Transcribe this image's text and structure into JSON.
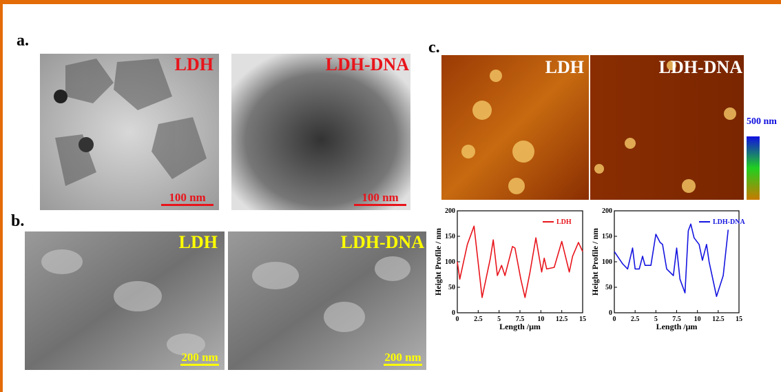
{
  "panels": {
    "a": {
      "label": "a.",
      "images": [
        {
          "label": "LDH",
          "scale_bar": "100 nm"
        },
        {
          "label": "LDH-DNA",
          "scale_bar": "100 nm"
        }
      ]
    },
    "b": {
      "label": "b.",
      "images": [
        {
          "label": "LDH",
          "scale_bar": "200 nm"
        },
        {
          "label": "LDH-DNA",
          "scale_bar": "200 nm"
        }
      ]
    },
    "c": {
      "label": "c.",
      "images": [
        {
          "label": "LDH"
        },
        {
          "label": "LDH-DNA"
        }
      ],
      "colorbar_label": "500 nm"
    }
  },
  "chart_data": [
    {
      "type": "line",
      "xlabel": "Length /μm",
      "ylabel": "Height Profile / nm",
      "x": [
        0,
        0.3,
        1.2,
        2.0,
        2.97,
        3.96,
        4.3,
        4.8,
        5.3,
        5.7,
        6.6,
        6.9,
        7.6,
        8.1,
        8.7,
        9.4,
        10.1,
        10.4,
        10.7,
        11.6,
        12.5,
        13.0,
        13.4,
        13.8,
        14.5,
        15
      ],
      "series": [
        {
          "name": "LDH",
          "color": "#e8141b",
          "values": [
            100,
            66,
            134,
            170,
            30,
            107,
            143,
            73,
            93,
            73,
            130,
            127,
            66,
            30,
            80,
            147,
            80,
            107,
            86,
            89,
            140,
            107,
            80,
            111,
            138,
            120
          ]
        }
      ],
      "xlim": [
        0,
        15
      ],
      "ylim": [
        0,
        200
      ],
      "xticks": [
        0,
        2.5,
        5,
        7.5,
        10,
        12.5,
        15
      ],
      "yticks": [
        0,
        50,
        100,
        150,
        200
      ],
      "legend": "upper right"
    },
    {
      "type": "line",
      "xlabel": "Length /μm",
      "ylabel": "Height Profile / nm",
      "x": [
        0,
        1.0,
        1.6,
        2.2,
        2.5,
        3.0,
        3.4,
        3.7,
        4.4,
        5.0,
        5.5,
        5.8,
        6.3,
        7.1,
        7.5,
        7.9,
        8.5,
        8.9,
        9.2,
        9.6,
        10.2,
        10.6,
        11.1,
        11.4,
        12.3,
        13.1,
        13.7
      ],
      "series": [
        {
          "name": "LDH-DNA",
          "color": "#1414e0",
          "values": [
            120,
            96,
            86,
            127,
            86,
            86,
            111,
            93,
            93,
            154,
            138,
            134,
            86,
            73,
            127,
            66,
            39,
            161,
            174,
            147,
            134,
            103,
            134,
            100,
            32,
            73,
            163
          ]
        }
      ],
      "xlim": [
        0,
        15
      ],
      "ylim": [
        0,
        200
      ],
      "xticks": [
        0,
        2.5,
        5,
        7.5,
        10,
        12.5,
        15
      ],
      "yticks": [
        0,
        50,
        100,
        150,
        200
      ],
      "legend": "upper right"
    }
  ]
}
